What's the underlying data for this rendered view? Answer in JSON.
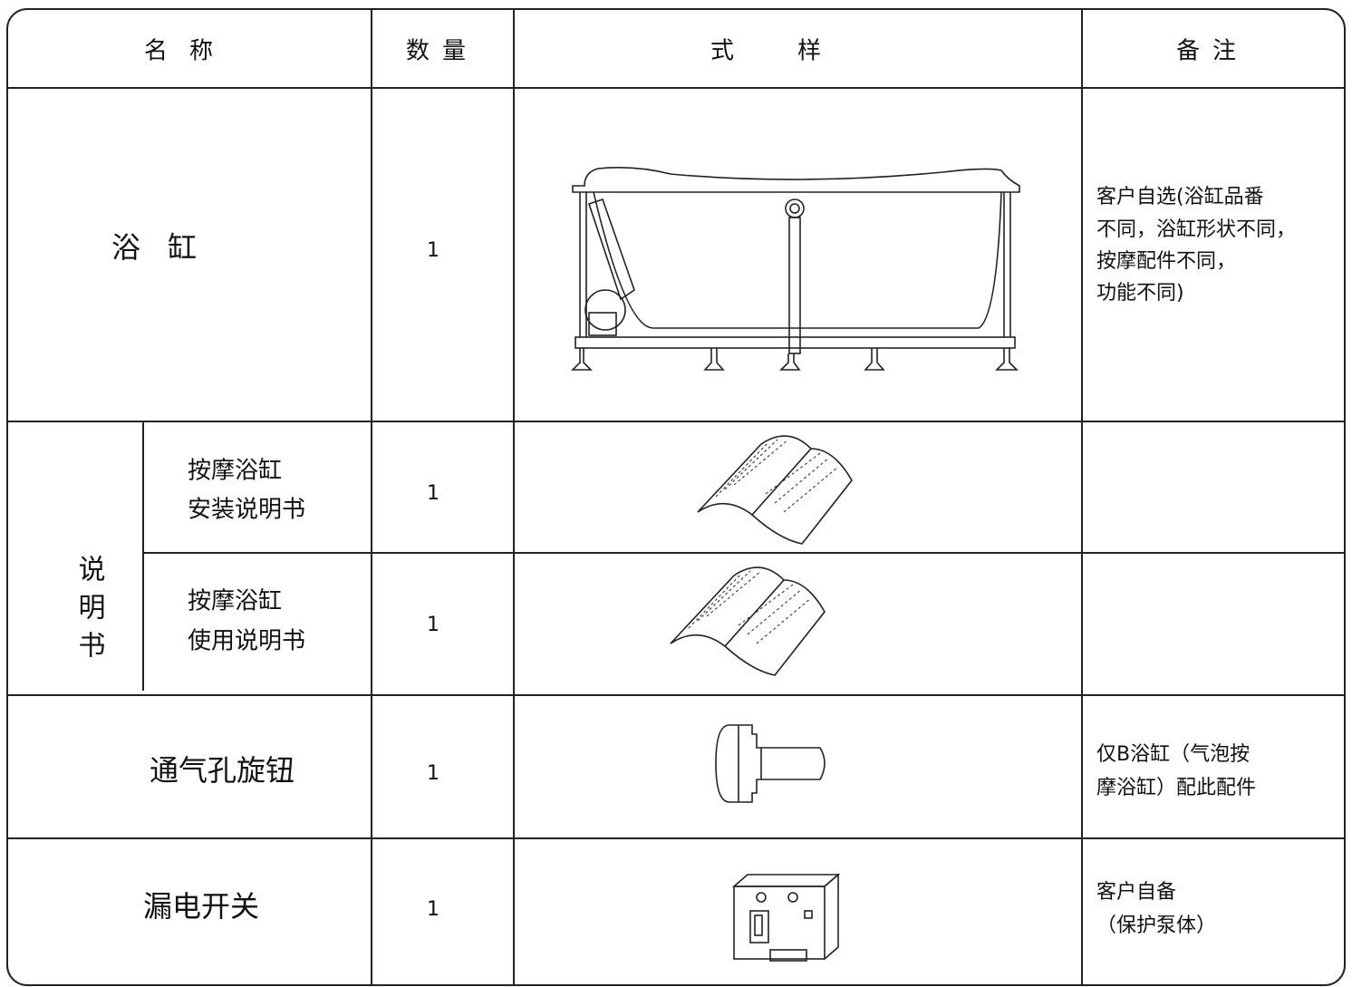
{
  "header": [
    "名称",
    "数量",
    "式样",
    "备注"
  ],
  "rows": [
    {
      "name": "浴缸",
      "quantity": 1,
      "note": [
        "客户自选(浴缸品番",
        "不同，浴缸形状不同，",
        "按摩配件不同，",
        "功能不同)"
      ]
    },
    {
      "group": "说明书",
      "items": [
        {
          "name": [
            "按摩浴缸",
            "安装说明书"
          ],
          "quantity": 1
        },
        {
          "name": [
            "按摩浴缸",
            "使用说明书"
          ],
          "quantity": 1
        }
      ]
    },
    {
      "name": "通气孔旋钮",
      "quantity": 1,
      "note": [
        "仅B浴缸（气泡按",
        "摩浴缸）配此配件"
      ]
    },
    {
      "name": "漏电开关",
      "quantity": 1,
      "note": [
        "客户自备",
        "（保护泵体）"
      ]
    }
  ]
}
